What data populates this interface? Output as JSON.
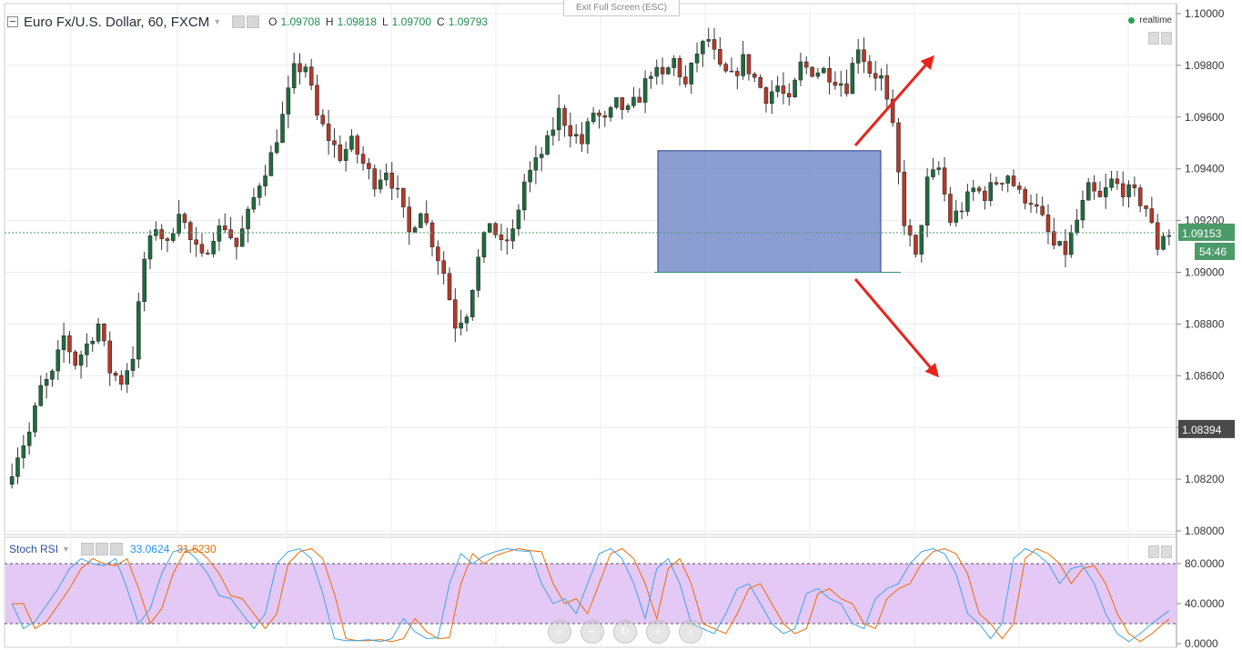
{
  "ui": {
    "exit_fullscreen": "Exit Full Screen (ESC)",
    "realtime_label": "realtime"
  },
  "legend": {
    "symbol": "Euro Fx/U.S. Dollar, 60, FXCM",
    "ohlc": [
      {
        "key": "O",
        "value": "1.09708"
      },
      {
        "key": "H",
        "value": "1.09818"
      },
      {
        "key": "L",
        "value": "1.09700"
      },
      {
        "key": "C",
        "value": "1.09793"
      }
    ]
  },
  "price_axis": {
    "ticks": [
      "1.10000",
      "1.09800",
      "1.09600",
      "1.09400",
      "1.09200",
      "1.09000",
      "1.08800",
      "1.08600",
      "1.08400",
      "1.08200",
      "1.08000"
    ],
    "current_price": "1.09153",
    "countdown": "54:46",
    "marker_price": "1.08394"
  },
  "stoch": {
    "name": "Stoch RSI",
    "k_value": "33.0624",
    "d_value": "31.6230",
    "ticks": [
      "80.0000",
      "40.0000",
      "0.0000"
    ]
  },
  "nav_buttons": [
    {
      "name": "scroll-left",
      "glyph": "‹"
    },
    {
      "name": "zoom-out",
      "glyph": "−"
    },
    {
      "name": "reset",
      "glyph": "↻"
    },
    {
      "name": "zoom-in",
      "glyph": "+"
    },
    {
      "name": "scroll-right",
      "glyph": "›"
    }
  ],
  "colors": {
    "up": "#1f6b3e",
    "down": "#b23a2a",
    "box": "#6b82c4",
    "arrow": "#e8231c",
    "k_line": "#3fa6e8",
    "d_line": "#ef6c00",
    "band": "#e4c8f5",
    "current_badge": "#4b9b69",
    "marker_badge": "#4a4a4a"
  },
  "chart_data": {
    "type": "candlestick",
    "interval": "60",
    "ylim": [
      1.08,
      1.1
    ],
    "anchors": [
      [
        0,
        1.0818
      ],
      [
        2,
        1.083
      ],
      [
        4,
        1.0838
      ],
      [
        6,
        1.0855
      ],
      [
        8,
        1.086
      ],
      [
        10,
        1.0875
      ],
      [
        12,
        1.0865
      ],
      [
        14,
        1.0872
      ],
      [
        16,
        1.088
      ],
      [
        18,
        1.0862
      ],
      [
        20,
        1.0858
      ],
      [
        22,
        1.0868
      ],
      [
        24,
        1.0905
      ],
      [
        26,
        1.0918
      ],
      [
        28,
        1.091
      ],
      [
        30,
        1.0925
      ],
      [
        32,
        1.0912
      ],
      [
        34,
        1.0905
      ],
      [
        36,
        1.0915
      ],
      [
        38,
        1.0918
      ],
      [
        40,
        1.091
      ],
      [
        42,
        1.0922
      ],
      [
        44,
        1.0935
      ],
      [
        46,
        1.0945
      ],
      [
        48,
        1.096
      ],
      [
        50,
        1.0978
      ],
      [
        52,
        1.098
      ],
      [
        54,
        1.096
      ],
      [
        56,
        1.0952
      ],
      [
        58,
        1.0945
      ],
      [
        60,
        1.095
      ],
      [
        62,
        1.0942
      ],
      [
        64,
        1.0935
      ],
      [
        66,
        1.094
      ],
      [
        68,
        1.093
      ],
      [
        70,
        1.0915
      ],
      [
        72,
        1.0925
      ],
      [
        74,
        1.0912
      ],
      [
        76,
        1.09
      ],
      [
        78,
        1.088
      ],
      [
        80,
        1.0885
      ],
      [
        82,
        1.0905
      ],
      [
        84,
        1.092
      ],
      [
        86,
        1.091
      ],
      [
        88,
        1.0915
      ],
      [
        90,
        1.0935
      ],
      [
        92,
        1.0942
      ],
      [
        94,
        1.095
      ],
      [
        96,
        1.0962
      ],
      [
        98,
        1.0955
      ],
      [
        100,
        1.095
      ],
      [
        102,
        1.0962
      ],
      [
        104,
        1.0958
      ],
      [
        106,
        1.0965
      ],
      [
        108,
        1.0962
      ],
      [
        110,
        1.0968
      ],
      [
        112,
        1.0978
      ],
      [
        114,
        1.0975
      ],
      [
        116,
        1.0982
      ],
      [
        118,
        1.0972
      ],
      [
        120,
        1.0985
      ],
      [
        122,
        1.099
      ],
      [
        124,
        1.0978
      ],
      [
        126,
        1.0975
      ],
      [
        128,
        1.0982
      ],
      [
        130,
        1.0975
      ],
      [
        132,
        1.0968
      ],
      [
        134,
        1.0972
      ],
      [
        136,
        1.0965
      ],
      [
        138,
        1.098
      ],
      [
        140,
        1.0978
      ],
      [
        142,
        1.0978
      ],
      [
        144,
        1.0975
      ],
      [
        146,
        1.0972
      ],
      [
        148,
        1.0988
      ],
      [
        150,
        1.0978
      ],
      [
        152,
        1.0975
      ],
      [
        154,
        1.0955
      ],
      [
        156,
        1.092
      ],
      [
        158,
        1.0905
      ],
      [
        160,
        1.0935
      ],
      [
        162,
        1.094
      ],
      [
        164,
        1.092
      ],
      [
        166,
        1.0925
      ],
      [
        168,
        1.0932
      ],
      [
        170,
        1.093
      ],
      [
        172,
        1.0935
      ],
      [
        174,
        1.0938
      ],
      [
        176,
        1.093
      ],
      [
        178,
        1.0928
      ],
      [
        180,
        1.092
      ],
      [
        182,
        1.091
      ],
      [
        184,
        1.0908
      ],
      [
        186,
        1.092
      ],
      [
        188,
        1.0932
      ],
      [
        190,
        1.0928
      ],
      [
        192,
        1.0935
      ],
      [
        194,
        1.0932
      ],
      [
        196,
        1.093
      ],
      [
        198,
        1.0925
      ],
      [
        200,
        1.091
      ],
      [
        201,
        1.0915
      ]
    ],
    "bars_count": 202,
    "annotations": {
      "range_box": {
        "top": 1.0947,
        "bottom": 1.09
      },
      "support_line": 1.09,
      "breakout_arrows": [
        "up",
        "down"
      ]
    },
    "stoch_rsi": {
      "ylim": [
        0,
        100
      ],
      "bands": [
        20,
        80
      ],
      "k_anchors": [
        [
          0,
          40
        ],
        [
          2,
          15
        ],
        [
          4,
          22
        ],
        [
          8,
          55
        ],
        [
          10,
          75
        ],
        [
          12,
          85
        ],
        [
          14,
          80
        ],
        [
          16,
          78
        ],
        [
          18,
          85
        ],
        [
          20,
          55
        ],
        [
          22,
          20
        ],
        [
          24,
          35
        ],
        [
          26,
          70
        ],
        [
          28,
          92
        ],
        [
          30,
          95
        ],
        [
          32,
          85
        ],
        [
          34,
          70
        ],
        [
          36,
          48
        ],
        [
          38,
          45
        ],
        [
          40,
          30
        ],
        [
          42,
          15
        ],
        [
          44,
          30
        ],
        [
          46,
          80
        ],
        [
          48,
          92
        ],
        [
          50,
          95
        ],
        [
          52,
          85
        ],
        [
          54,
          50
        ],
        [
          56,
          5
        ],
        [
          58,
          3
        ],
        [
          60,
          3
        ],
        [
          62,
          4
        ],
        [
          64,
          2
        ],
        [
          66,
          5
        ],
        [
          68,
          25
        ],
        [
          70,
          12
        ],
        [
          72,
          5
        ],
        [
          74,
          6
        ],
        [
          76,
          60
        ],
        [
          78,
          90
        ],
        [
          80,
          80
        ],
        [
          82,
          88
        ],
        [
          84,
          92
        ],
        [
          86,
          95
        ],
        [
          88,
          93
        ],
        [
          90,
          92
        ],
        [
          92,
          60
        ],
        [
          94,
          40
        ],
        [
          96,
          45
        ],
        [
          98,
          30
        ],
        [
          100,
          60
        ],
        [
          102,
          90
        ],
        [
          104,
          95
        ],
        [
          106,
          85
        ],
        [
          108,
          60
        ],
        [
          110,
          25
        ],
        [
          112,
          75
        ],
        [
          114,
          85
        ],
        [
          116,
          60
        ],
        [
          118,
          20
        ],
        [
          120,
          15
        ],
        [
          122,
          10
        ],
        [
          124,
          30
        ],
        [
          126,
          55
        ],
        [
          128,
          60
        ],
        [
          130,
          40
        ],
        [
          132,
          20
        ],
        [
          134,
          10
        ],
        [
          136,
          15
        ],
        [
          138,
          50
        ],
        [
          140,
          55
        ],
        [
          142,
          45
        ],
        [
          144,
          40
        ],
        [
          146,
          20
        ],
        [
          148,
          15
        ],
        [
          150,
          45
        ],
        [
          152,
          55
        ],
        [
          154,
          60
        ],
        [
          156,
          80
        ],
        [
          158,
          92
        ],
        [
          160,
          95
        ],
        [
          162,
          90
        ],
        [
          164,
          70
        ],
        [
          166,
          30
        ],
        [
          168,
          20
        ],
        [
          170,
          5
        ],
        [
          172,
          20
        ],
        [
          174,
          85
        ],
        [
          176,
          95
        ],
        [
          178,
          90
        ],
        [
          180,
          80
        ],
        [
          182,
          60
        ],
        [
          184,
          75
        ],
        [
          186,
          78
        ],
        [
          188,
          60
        ],
        [
          190,
          30
        ],
        [
          192,
          10
        ],
        [
          194,
          2
        ],
        [
          196,
          10
        ],
        [
          198,
          20
        ],
        [
          201,
          33
        ]
      ],
      "lag": 2
    }
  }
}
